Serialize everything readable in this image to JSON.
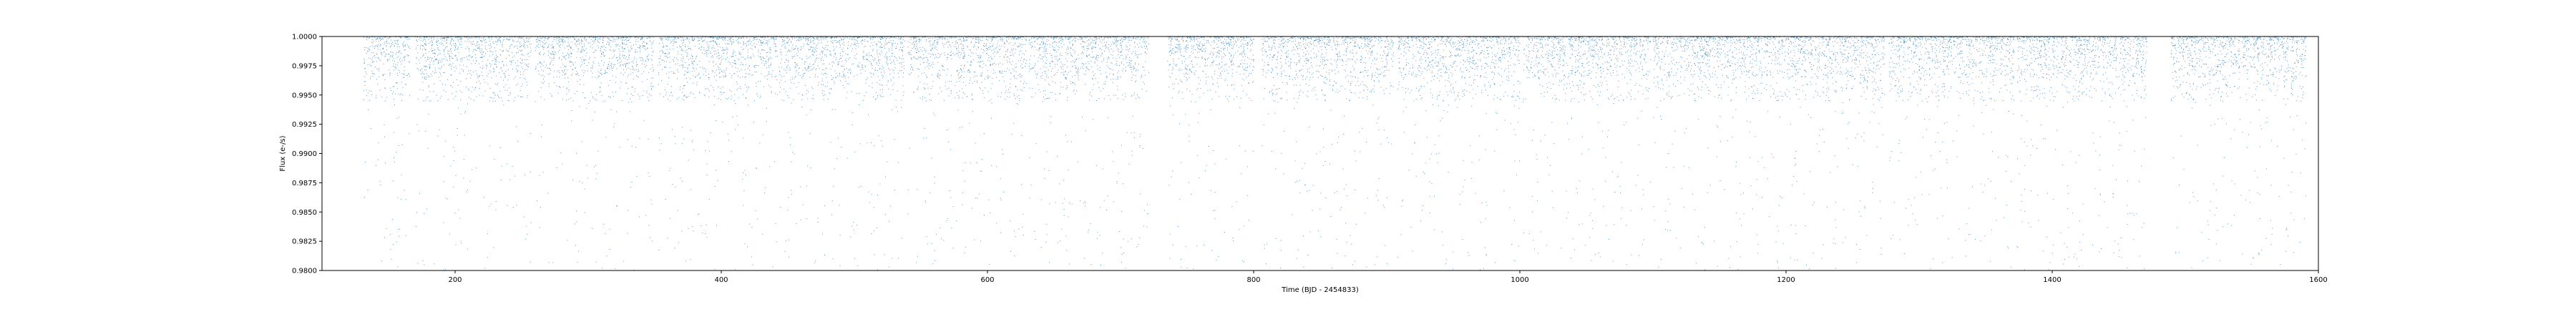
{
  "chart_data": {
    "type": "scatter",
    "xlabel": "Time (BJD - 2454833)",
    "ylabel": "Flux (e-/s)",
    "xlim": [
      100,
      1600
    ],
    "ylim": [
      0.98,
      1.0
    ],
    "x_ticks": [
      200,
      400,
      600,
      800,
      1000,
      1200,
      1400,
      1600
    ],
    "y_ticks": [
      0.98,
      0.9825,
      0.985,
      0.9875,
      0.99,
      0.9925,
      0.995,
      0.9975,
      1.0
    ],
    "y_tick_labels": [
      "0.9800",
      "0.9825",
      "0.9850",
      "0.9875",
      "0.9900",
      "0.9925",
      "0.9950",
      "0.9975",
      "1.0000"
    ],
    "grid": false,
    "legend": "none",
    "series": [
      {
        "color": "#1f77b4",
        "marker": "dot",
        "observing_segments": [
          [
            131,
            166
          ],
          [
            170,
            257
          ],
          [
            260,
            349
          ],
          [
            352,
            442
          ],
          [
            443,
            538
          ],
          [
            540,
            629
          ],
          [
            631,
            721
          ],
          [
            735,
            800
          ],
          [
            806,
            905
          ],
          [
            908,
            1000
          ],
          [
            1002,
            1098
          ],
          [
            1100,
            1182
          ],
          [
            1183,
            1274
          ],
          [
            1277,
            1371
          ],
          [
            1373,
            1471
          ],
          [
            1489,
            1591
          ]
        ],
        "dense_band": [
          0.9945,
          1.0
        ]
      }
    ]
  }
}
